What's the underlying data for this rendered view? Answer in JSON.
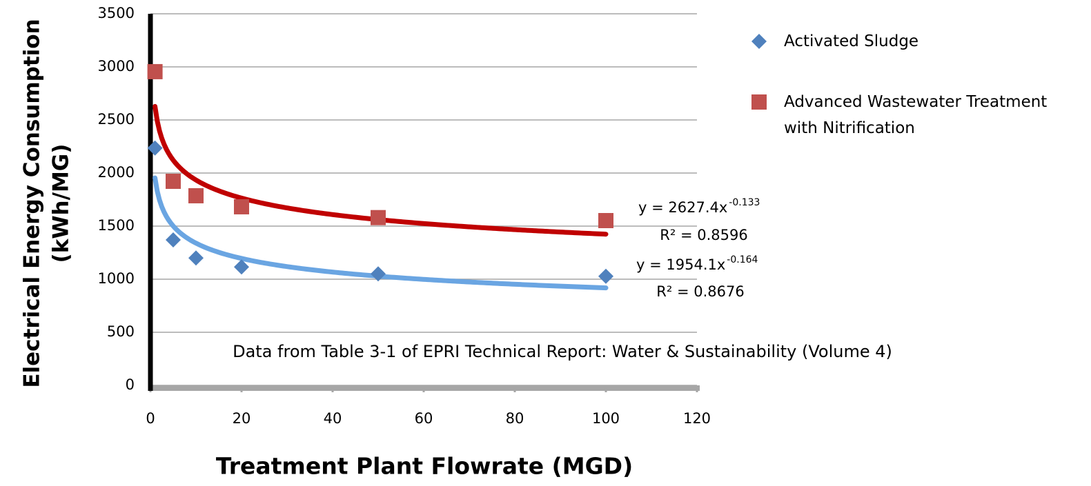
{
  "chart_data": {
    "type": "scatter",
    "xlabel": "Treatment Plant Flowrate (MGD)",
    "ylabel": [
      "Electrical Energy Consumption",
      "(kWh/MG)"
    ],
    "annotation": "Data from Table 3-1 of EPRI Technical Report: Water & Sustainability (Volume 4)",
    "xlim": [
      0,
      120
    ],
    "xticks": [
      0,
      20,
      40,
      60,
      80,
      100,
      120
    ],
    "ylim": [
      0,
      3500
    ],
    "yticks": [
      0,
      500,
      1000,
      1500,
      2000,
      2500,
      3000,
      3500
    ],
    "grid": true,
    "legend": "right",
    "series": [
      {
        "name": "Activated Sludge",
        "color": "#4f81bd",
        "marker": "diamond",
        "x": [
          1,
          5,
          10,
          20,
          50,
          100
        ],
        "values": [
          2235,
          1370,
          1200,
          1115,
          1050,
          1028
        ],
        "trendline": {
          "a": 1954.1,
          "b": -0.164,
          "color": "#6aa5e2",
          "label": "y = 1954.1x",
          "exponent_label": "-0.164",
          "r2_label": "R² = 0.8676"
        }
      },
      {
        "name": "Advanced Wastewater Treatment with Nitrification",
        "color": "#c0504d",
        "marker": "square",
        "x": [
          1,
          5,
          10,
          20,
          50,
          100
        ],
        "values": [
          2955,
          1922,
          1786,
          1682,
          1580,
          1552
        ],
        "trendline": {
          "a": 2627.4,
          "b": -0.133,
          "color": "#c00000",
          "label": "y = 2627.4x",
          "exponent_label": "-0.133",
          "r2_label": "R² = 0.8596"
        }
      }
    ]
  }
}
